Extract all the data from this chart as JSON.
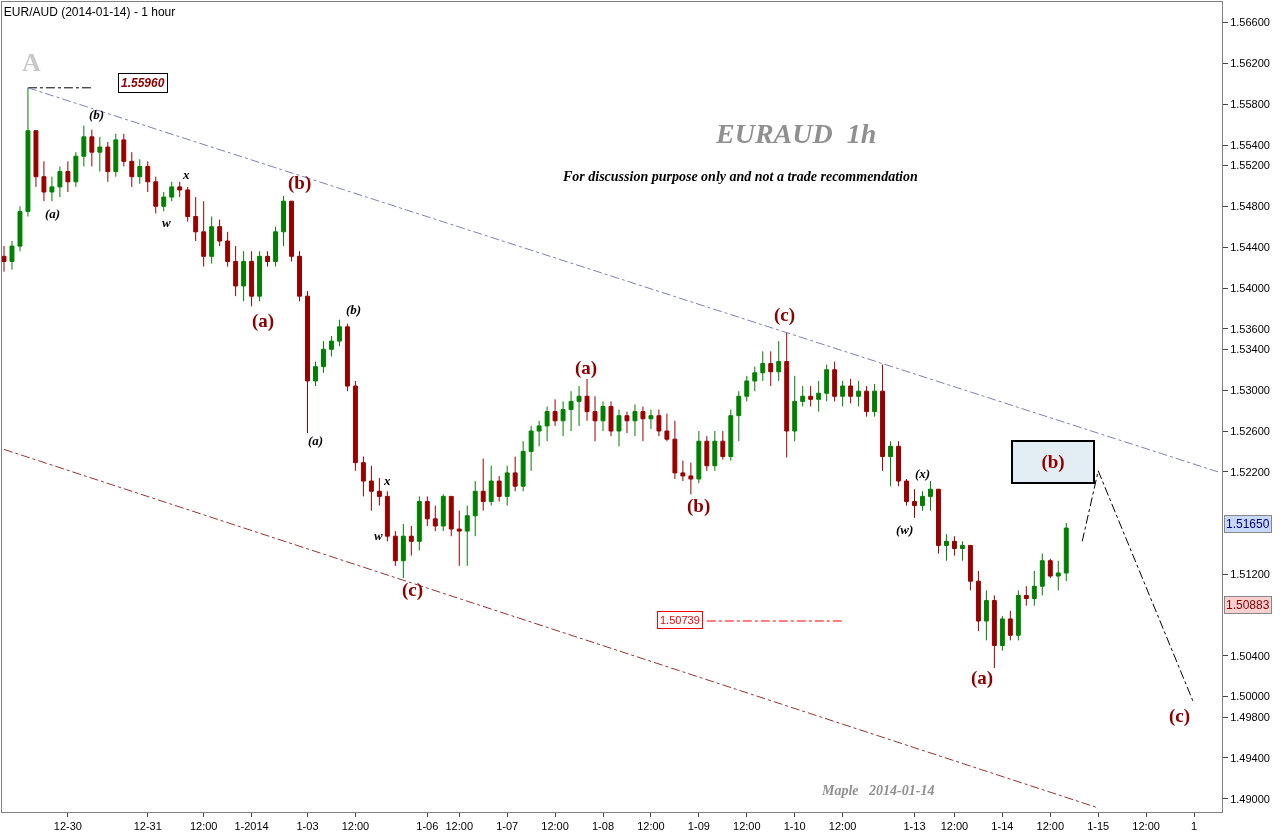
{
  "chart_data": {
    "type": "candlestick",
    "title": "EUR/AUD (2014-01-14) - 1 hour",
    "categories": [
      null,
      null,
      null,
      null,
      null,
      null,
      null,
      null,
      "12-30",
      null,
      null,
      null,
      null,
      null,
      null,
      null,
      null,
      null,
      "12-31",
      null,
      null,
      null,
      null,
      null,
      null,
      "12:00",
      null,
      null,
      null,
      null,
      null,
      "1-2014",
      null,
      null,
      null,
      null,
      null,
      null,
      "1-03",
      null,
      null,
      null,
      null,
      null,
      "12:00",
      null,
      null,
      null,
      null,
      null,
      null,
      null,
      null,
      "1-06",
      null,
      null,
      null,
      "12:00",
      null,
      null,
      null,
      null,
      null,
      "1-07",
      null,
      null,
      null,
      null,
      null,
      "12:00",
      null,
      null,
      null,
      null,
      null,
      "1-08",
      null,
      null,
      null,
      null,
      null,
      "12:00",
      null,
      null,
      null,
      null,
      null,
      "1-09",
      null,
      null,
      null,
      null,
      null,
      "12:00",
      null,
      null,
      null,
      null,
      null,
      "1-10",
      null,
      null,
      null,
      null,
      null,
      "12:00",
      null,
      null,
      null,
      null,
      null,
      null,
      null,
      null,
      "1-13",
      null,
      null,
      null,
      null,
      "12:00",
      null,
      null,
      null,
      null,
      null,
      "1-14",
      null,
      null,
      null,
      null,
      null,
      "12:00",
      null,
      null,
      null,
      null,
      null,
      "1-15",
      null,
      null,
      null,
      null,
      null,
      "12:00",
      null,
      null,
      null,
      null,
      null,
      "1",
      null,
      null,
      null
    ],
    "ohlc": [
      [
        1.5431,
        1.5441,
        1.5416,
        1.5426
      ],
      [
        1.5426,
        1.5446,
        1.5418,
        1.5441
      ],
      [
        1.5441,
        1.548,
        1.5436,
        1.5475
      ],
      [
        1.5475,
        1.5596,
        1.547,
        1.5554
      ],
      [
        1.5554,
        1.5554,
        1.5499,
        1.5509
      ],
      [
        1.5509,
        1.5524,
        1.5485,
        1.5494
      ],
      [
        1.5494,
        1.5509,
        1.5485,
        1.5499
      ],
      [
        1.5499,
        1.5519,
        1.5489,
        1.5514
      ],
      [
        1.5514,
        1.5524,
        1.5494,
        1.5504
      ],
      [
        1.5504,
        1.5533,
        1.5499,
        1.5529
      ],
      [
        1.5529,
        1.5559,
        1.5519,
        1.5548
      ],
      [
        1.5548,
        1.5555,
        1.5519,
        1.5533
      ],
      [
        1.5533,
        1.5548,
        1.5514,
        1.5538
      ],
      [
        1.5538,
        1.5543,
        1.5504,
        1.5514
      ],
      [
        1.5514,
        1.5551,
        1.5509,
        1.5545
      ],
      [
        1.5545,
        1.5551,
        1.5519,
        1.5524
      ],
      [
        1.5524,
        1.5533,
        1.5499,
        1.5509
      ],
      [
        1.5509,
        1.5526,
        1.5502,
        1.5519
      ],
      [
        1.5519,
        1.5524,
        1.5494,
        1.5504
      ],
      [
        1.5504,
        1.5509,
        1.5473,
        1.548
      ],
      [
        1.548,
        1.5494,
        1.5475,
        1.5489
      ],
      [
        1.5489,
        1.5504,
        1.5485,
        1.5499
      ],
      [
        1.5499,
        1.5504,
        1.5489,
        1.5496
      ],
      [
        1.5496,
        1.5499,
        1.5465,
        1.547
      ],
      [
        1.547,
        1.5489,
        1.5446,
        1.5455
      ],
      [
        1.5455,
        1.5485,
        1.5421,
        1.5431
      ],
      [
        1.5431,
        1.547,
        1.5424,
        1.546
      ],
      [
        1.546,
        1.5467,
        1.5441,
        1.5446
      ],
      [
        1.5446,
        1.5455,
        1.5421,
        1.5426
      ],
      [
        1.5426,
        1.5441,
        1.5392,
        1.5402
      ],
      [
        1.5402,
        1.5436,
        1.5387,
        1.5426
      ],
      [
        1.5426,
        1.5436,
        1.5382,
        1.5392
      ],
      [
        1.5392,
        1.5436,
        1.5387,
        1.5431
      ],
      [
        1.5431,
        1.5436,
        1.5421,
        1.5426
      ],
      [
        1.5426,
        1.546,
        1.5421,
        1.5455
      ],
      [
        1.5455,
        1.549,
        1.5441,
        1.5485
      ],
      [
        1.5485,
        1.5485,
        1.5426,
        1.5431
      ],
      [
        1.5431,
        1.5436,
        1.5387,
        1.5392
      ],
      [
        1.5392,
        1.5397,
        1.5258,
        1.5309
      ],
      [
        1.5309,
        1.5328,
        1.5304,
        1.5323
      ],
      [
        1.5323,
        1.5348,
        1.5317,
        1.534
      ],
      [
        1.534,
        1.5353,
        1.5333,
        1.5348
      ],
      [
        1.5348,
        1.5369,
        1.5343,
        1.5362
      ],
      [
        1.5362,
        1.5365,
        1.5299,
        1.5304
      ],
      [
        1.5304,
        1.5309,
        1.5221,
        1.5229
      ],
      [
        1.5229,
        1.5235,
        1.5196,
        1.5211
      ],
      [
        1.5211,
        1.5226,
        1.5182,
        1.5201
      ],
      [
        1.5201,
        1.5214,
        1.5187,
        1.5196
      ],
      [
        1.5196,
        1.5201,
        1.5152,
        1.5157
      ],
      [
        1.5157,
        1.5162,
        1.5128,
        1.5133
      ],
      [
        1.5133,
        1.5169,
        1.5116,
        1.5157
      ],
      [
        1.5157,
        1.5167,
        1.5138,
        1.5152
      ],
      [
        1.5152,
        1.5196,
        1.5143,
        1.5191
      ],
      [
        1.5191,
        1.5196,
        1.5167,
        1.5174
      ],
      [
        1.5174,
        1.5187,
        1.5162,
        1.5167
      ],
      [
        1.5167,
        1.5198,
        1.5162,
        1.5196
      ],
      [
        1.5196,
        1.5196,
        1.5157,
        1.5164
      ],
      [
        1.5164,
        1.5182,
        1.5128,
        1.5162
      ],
      [
        1.5162,
        1.5187,
        1.5128,
        1.5177
      ],
      [
        1.5177,
        1.5211,
        1.5157,
        1.5201
      ],
      [
        1.5201,
        1.5233,
        1.5182,
        1.5191
      ],
      [
        1.5191,
        1.5226,
        1.5187,
        1.5211
      ],
      [
        1.5211,
        1.5216,
        1.5191,
        1.5196
      ],
      [
        1.5196,
        1.5226,
        1.5187,
        1.5219
      ],
      [
        1.5219,
        1.5235,
        1.5201,
        1.5206
      ],
      [
        1.5206,
        1.525,
        1.5201,
        1.524
      ],
      [
        1.524,
        1.5265,
        1.5221,
        1.526
      ],
      [
        1.526,
        1.527,
        1.5245,
        1.5265
      ],
      [
        1.5265,
        1.5284,
        1.525,
        1.5279
      ],
      [
        1.5279,
        1.5291,
        1.5265,
        1.527
      ],
      [
        1.527,
        1.5289,
        1.5255,
        1.5281
      ],
      [
        1.5281,
        1.5299,
        1.526,
        1.5289
      ],
      [
        1.5289,
        1.5304,
        1.5265,
        1.5294
      ],
      [
        1.5294,
        1.5311,
        1.527,
        1.5279
      ],
      [
        1.5279,
        1.5294,
        1.525,
        1.527
      ],
      [
        1.527,
        1.5289,
        1.526,
        1.5284
      ],
      [
        1.5284,
        1.5289,
        1.5255,
        1.526
      ],
      [
        1.526,
        1.5281,
        1.5245,
        1.5275
      ],
      [
        1.5275,
        1.5279,
        1.5258,
        1.527
      ],
      [
        1.527,
        1.5286,
        1.5255,
        1.5279
      ],
      [
        1.5279,
        1.5284,
        1.525,
        1.5272
      ],
      [
        1.5272,
        1.5281,
        1.5262,
        1.5275
      ],
      [
        1.5275,
        1.5281,
        1.5255,
        1.526
      ],
      [
        1.526,
        1.5277,
        1.525,
        1.5252
      ],
      [
        1.5252,
        1.527,
        1.5213,
        1.5219
      ],
      [
        1.5219,
        1.5231,
        1.5211,
        1.5216
      ],
      [
        1.5216,
        1.5229,
        1.5198,
        1.5213
      ],
      [
        1.5213,
        1.526,
        1.5209,
        1.525
      ],
      [
        1.525,
        1.5255,
        1.5221,
        1.5226
      ],
      [
        1.5226,
        1.526,
        1.5221,
        1.525
      ],
      [
        1.525,
        1.526,
        1.5232,
        1.5235
      ],
      [
        1.5235,
        1.5281,
        1.5231,
        1.5275
      ],
      [
        1.5275,
        1.5299,
        1.525,
        1.5294
      ],
      [
        1.5294,
        1.5314,
        1.5289,
        1.5309
      ],
      [
        1.5309,
        1.5323,
        1.5299,
        1.5317
      ],
      [
        1.5317,
        1.5338,
        1.5309,
        1.5326
      ],
      [
        1.5326,
        1.5338,
        1.5304,
        1.5318
      ],
      [
        1.5318,
        1.5348,
        1.5309,
        1.5328
      ],
      [
        1.5328,
        1.5356,
        1.5234,
        1.526
      ],
      [
        1.526,
        1.5314,
        1.525,
        1.5289
      ],
      [
        1.5289,
        1.5304,
        1.5284,
        1.5294
      ],
      [
        1.5294,
        1.5304,
        1.5284,
        1.5291
      ],
      [
        1.5291,
        1.5309,
        1.5279,
        1.5297
      ],
      [
        1.5297,
        1.5325,
        1.5289,
        1.532
      ],
      [
        1.532,
        1.5328,
        1.5289,
        1.5294
      ],
      [
        1.5294,
        1.5309,
        1.5284,
        1.5304
      ],
      [
        1.5304,
        1.5311,
        1.5287,
        1.5294
      ],
      [
        1.5294,
        1.5309,
        1.5284,
        1.5299
      ],
      [
        1.5299,
        1.5304,
        1.5274,
        1.5279
      ],
      [
        1.5279,
        1.5306,
        1.5274,
        1.5299
      ],
      [
        1.5299,
        1.5325,
        1.5221,
        1.5235
      ],
      [
        1.5235,
        1.525,
        1.5206,
        1.5245
      ],
      [
        1.5245,
        1.525,
        1.5206,
        1.5211
      ],
      [
        1.5211,
        1.5213,
        1.5187,
        1.5191
      ],
      [
        1.5191,
        1.5203,
        1.5175,
        1.5187
      ],
      [
        1.5187,
        1.5201,
        1.5182,
        1.5196
      ],
      [
        1.5196,
        1.5211,
        1.5182,
        1.5203
      ],
      [
        1.5203,
        1.5203,
        1.514,
        1.5148
      ],
      [
        1.5148,
        1.5159,
        1.5133,
        1.5152
      ],
      [
        1.5152,
        1.5157,
        1.5138,
        1.5145
      ],
      [
        1.5145,
        1.5152,
        1.5133,
        1.5148
      ],
      [
        1.5148,
        1.5148,
        1.5104,
        1.5113
      ],
      [
        1.5113,
        1.5123,
        1.5064,
        1.5074
      ],
      [
        1.5074,
        1.5104,
        1.5055,
        1.5094
      ],
      [
        1.5094,
        1.5099,
        1.5028,
        1.505
      ],
      [
        1.505,
        1.5079,
        1.5045,
        1.5076
      ],
      [
        1.5076,
        1.5084,
        1.5055,
        1.506
      ],
      [
        1.506,
        1.5104,
        1.5055,
        1.5099
      ],
      [
        1.5099,
        1.5108,
        1.5089,
        1.5096
      ],
      [
        1.5096,
        1.5123,
        1.5089,
        1.5108
      ],
      [
        1.5108,
        1.514,
        1.5099,
        1.5133
      ],
      [
        1.5133,
        1.5135,
        1.5116,
        1.5118
      ],
      [
        1.5118,
        1.5133,
        1.5104,
        1.5121
      ],
      [
        1.5121,
        1.517,
        1.5113,
        1.5165
      ],
      null,
      null,
      null,
      null,
      null,
      null,
      null,
      null,
      null,
      null,
      null,
      null,
      null,
      null,
      null,
      null,
      null,
      null,
      null
    ],
    "colors": [
      "#990000",
      "#008000",
      "#008000",
      "#008000",
      "#990000",
      "#990000",
      "#008000",
      "#008000",
      "#990000",
      "#008000",
      "#008000",
      "#990000",
      "#008000",
      "#990000",
      "#008000",
      "#990000",
      "#990000",
      "#008000",
      "#990000",
      "#990000",
      "#008000",
      "#008000",
      "#990000",
      "#990000",
      "#990000",
      "#990000",
      "#008000",
      "#990000",
      "#990000",
      "#990000",
      "#008000",
      "#990000",
      "#008000",
      "#990000",
      "#008000",
      "#008000",
      "#990000",
      "#990000",
      "#990000",
      "#008000",
      "#008000",
      "#008000",
      "#008000",
      "#990000",
      "#990000",
      "#990000",
      "#990000",
      "#990000",
      "#990000",
      "#990000",
      "#008000",
      "#990000",
      "#008000",
      "#990000",
      "#990000",
      "#008000",
      "#990000",
      "#990000",
      "#008000",
      "#008000",
      "#990000",
      "#008000",
      "#990000",
      "#008000",
      "#990000",
      "#008000",
      "#008000",
      "#008000",
      "#008000",
      "#990000",
      "#008000",
      "#008000",
      "#008000",
      "#990000",
      "#990000",
      "#008000",
      "#990000",
      "#008000",
      "#990000",
      "#008000",
      "#990000",
      "#008000",
      "#990000",
      "#990000",
      "#990000",
      "#990000",
      "#990000",
      "#008000",
      "#990000",
      "#008000",
      "#990000",
      "#008000",
      "#008000",
      "#008000",
      "#008000",
      "#008000",
      "#990000",
      "#008000",
      "#990000",
      "#008000",
      "#008000",
      "#990000",
      "#008000",
      "#008000",
      "#990000",
      "#008000",
      "#990000",
      "#008000",
      "#990000",
      "#008000",
      "#990000",
      "#008000",
      "#990000",
      "#990000",
      "#990000",
      "#008000",
      "#008000",
      "#990000",
      "#008000",
      "#990000",
      "#008000",
      "#990000",
      "#990000",
      "#008000",
      "#990000",
      "#008000",
      "#990000",
      "#008000",
      "#990000",
      "#008000",
      "#008000",
      "#990000",
      "#008000",
      "#008000",
      null,
      null,
      null,
      null,
      null,
      null,
      null,
      null,
      null,
      null,
      null,
      null,
      null,
      null,
      null,
      null,
      null,
      null,
      null
    ],
    "series": [
      {
        "type": "line",
        "values": [
          null,
          null,
          null,
          1.5596,
          null,
          null,
          null,
          null,
          null,
          null,
          null,
          null,
          null,
          null,
          null,
          null,
          null,
          null,
          null,
          null,
          null,
          null,
          null,
          null,
          null,
          null,
          null,
          null,
          null,
          null,
          null,
          null,
          null,
          null,
          null,
          null,
          null,
          null,
          null,
          null,
          null,
          null,
          null,
          null,
          null,
          null,
          null,
          null,
          null,
          null,
          null,
          null,
          null,
          null,
          null,
          null,
          null,
          null,
          null,
          null,
          null,
          null,
          null,
          null,
          null,
          null,
          null,
          null,
          null,
          null,
          null,
          null,
          null,
          null,
          null,
          null,
          null,
          null,
          null,
          null,
          null,
          null,
          null,
          null,
          null,
          null,
          null,
          null,
          null,
          null,
          null,
          null,
          null,
          null,
          null,
          null,
          null,
          null,
          null,
          null,
          null,
          null,
          null,
          null,
          null,
          null,
          null,
          null,
          null,
          null,
          null,
          null,
          null,
          null,
          null,
          null,
          null,
          null,
          null,
          null,
          null,
          null,
          null,
          null,
          null,
          null,
          null,
          null,
          null,
          null,
          null,
          null,
          null,
          null,
          null,
          null,
          null,
          null,
          null,
          null,
          null,
          null,
          null,
          null,
          null,
          null,
          null,
          null,
          null,
          null,
          null,
          null,
          1.522
        ],
        "color": "#8080b8",
        "line_style": "dashed"
      },
      {
        "type": "line",
        "values": [
          1.5242,
          null,
          null,
          null,
          null,
          null,
          null,
          null,
          null,
          null,
          null,
          null,
          null,
          null,
          null,
          null,
          null,
          null,
          null,
          null,
          null,
          null,
          null,
          null,
          null,
          null,
          null,
          null,
          null,
          null,
          null,
          null,
          null,
          null,
          null,
          null,
          null,
          null,
          null,
          null,
          null,
          null,
          null,
          null,
          null,
          null,
          null,
          null,
          null,
          null,
          null,
          null,
          null,
          null,
          null,
          null,
          null,
          null,
          null,
          null,
          null,
          null,
          null,
          null,
          null,
          null,
          null,
          null,
          null,
          null,
          null,
          null,
          null,
          null,
          null,
          null,
          null,
          null,
          null,
          null,
          null,
          null,
          null,
          null,
          null,
          null,
          null,
          null,
          null,
          null,
          null,
          null,
          null,
          null,
          null,
          null,
          null,
          null,
          null,
          null,
          null,
          null,
          null,
          null,
          null,
          null,
          null,
          null,
          null,
          null,
          null,
          null,
          null,
          null,
          null,
          null,
          null,
          null,
          null,
          null,
          null,
          null,
          null,
          null,
          null,
          null,
          null,
          null,
          null,
          null,
          null,
          null,
          null,
          null,
          null,
          null,
          null,
          1.4891,
          null,
          null,
          null,
          null,
          null,
          null,
          null,
          null,
          null,
          null,
          null,
          null,
          null,
          null,
          null
        ],
        "color": "#993333",
        "line_style": "dashed"
      },
      {
        "type": "line",
        "values": [
          null,
          null,
          null,
          null,
          null,
          null,
          null,
          null,
          null,
          null,
          null,
          null,
          null,
          null,
          null,
          null,
          null,
          null,
          null,
          null,
          null,
          null,
          null,
          null,
          null,
          null,
          null,
          null,
          null,
          null,
          null,
          null,
          null,
          null,
          null,
          null,
          null,
          null,
          null,
          null,
          null,
          null,
          null,
          null,
          null,
          null,
          null,
          null,
          null,
          null,
          null,
          null,
          null,
          null,
          null,
          null,
          null,
          null,
          null,
          null,
          null,
          null,
          null,
          null,
          null,
          null,
          null,
          null,
          null,
          null,
          null,
          null,
          null,
          null,
          null,
          null,
          null,
          null,
          null,
          null,
          null,
          null,
          null,
          null,
          null,
          null,
          null,
          null,
          null,
          null,
          null,
          null,
          null,
          null,
          null,
          null,
          null,
          null,
          null,
          null,
          null,
          null,
          null,
          null,
          null,
          null,
          null,
          null,
          null,
          null,
          null,
          null,
          null,
          null,
          null,
          null,
          null,
          null,
          null,
          null,
          null,
          null,
          null,
          null,
          null,
          null,
          null,
          null,
          null,
          null,
          null,
          null,
          null,
          null,
          null,
          1.5152,
          null,
          1.5221,
          null,
          null,
          null,
          null,
          null,
          null,
          null,
          null,
          null,
          null,
          null,
          1.4993,
          null,
          null,
          null
        ],
        "color": "#000000",
        "line_style": "dashed"
      },
      {
        "type": "line",
        "values": [
          null,
          null,
          null,
          1.5596,
          null,
          null,
          null,
          null,
          null,
          null,
          null,
          1.5596,
          null,
          null,
          null,
          null,
          null,
          null,
          null,
          null,
          null,
          null,
          null,
          null,
          null,
          null,
          null,
          null,
          null,
          null,
          null,
          null,
          null,
          null,
          null,
          null,
          null,
          null,
          null,
          null,
          null,
          null,
          null,
          null,
          null,
          null,
          null,
          null,
          null,
          null,
          null,
          null,
          null,
          null,
          null,
          null,
          null,
          null,
          null,
          null,
          null,
          null,
          null,
          null,
          null,
          null,
          null,
          null,
          null,
          null,
          null,
          null,
          null,
          null,
          null,
          null,
          null,
          null,
          null,
          null,
          null,
          null,
          null,
          null,
          null,
          null,
          null,
          null,
          null,
          null,
          null,
          null,
          null,
          null,
          null,
          null,
          null,
          null,
          null,
          null,
          null,
          null,
          null,
          null,
          null,
          null,
          null,
          null,
          null,
          null,
          null,
          null,
          null,
          null,
          null,
          null,
          null,
          null,
          null,
          null,
          null,
          null,
          null,
          null,
          null,
          null,
          null,
          null,
          null,
          null,
          null,
          null,
          null,
          null,
          null,
          null,
          null,
          null,
          null,
          null,
          null,
          null,
          null,
          null,
          null,
          null,
          null,
          null,
          null,
          null,
          null,
          null,
          null
        ],
        "color": "#000000",
        "line_style": "dashed"
      },
      {
        "type": "line",
        "values": [
          null,
          null,
          null,
          null,
          null,
          null,
          null,
          null,
          null,
          null,
          null,
          null,
          null,
          null,
          null,
          null,
          null,
          null,
          null,
          null,
          null,
          null,
          null,
          null,
          null,
          null,
          null,
          null,
          null,
          null,
          null,
          null,
          null,
          null,
          null,
          null,
          null,
          null,
          null,
          null,
          null,
          null,
          null,
          null,
          null,
          null,
          null,
          null,
          null,
          null,
          null,
          null,
          null,
          null,
          null,
          null,
          null,
          null,
          null,
          null,
          null,
          null,
          null,
          null,
          null,
          null,
          null,
          null,
          null,
          null,
          null,
          null,
          null,
          null,
          null,
          null,
          null,
          null,
          null,
          null,
          null,
          null,
          null,
          null,
          null,
          null,
          null,
          null,
          1.5074,
          null,
          null,
          null,
          null,
          null,
          null,
          null,
          null,
          null,
          null,
          null,
          null,
          null,
          null,
          null,
          null,
          1.5074,
          null,
          null,
          null,
          null,
          null,
          null,
          null,
          null,
          null,
          null,
          null,
          null,
          null,
          null,
          null,
          null,
          null,
          null,
          null,
          null,
          null,
          null,
          null,
          null,
          null,
          null,
          null,
          null,
          null,
          null,
          null,
          null,
          null,
          null,
          null,
          null,
          null,
          null,
          null,
          null,
          null,
          null,
          null,
          null,
          null,
          null,
          null
        ],
        "color": "#ff0000",
        "line_style": "dashed"
      }
    ],
    "ylim": [
      1.4887,
      1.568
    ],
    "yticks": [
      {
        "value": 1.566,
        "label": "1.56600"
      },
      {
        "value": 1.562,
        "label": "1.56200"
      },
      {
        "value": 1.558,
        "label": "1.55800"
      },
      {
        "value": 1.554,
        "label": "1.55400"
      },
      {
        "value": 1.552,
        "label": "1.55200"
      },
      {
        "value": 1.548,
        "label": "1.54800"
      },
      {
        "value": 1.544,
        "label": "1.54400"
      },
      {
        "value": 1.54,
        "label": "1.54000"
      },
      {
        "value": 1.536,
        "label": "1.53600"
      },
      {
        "value": 1.534,
        "label": "1.53400"
      },
      {
        "value": 1.53,
        "label": "1.53000"
      },
      {
        "value": 1.526,
        "label": "1.52600"
      },
      {
        "value": 1.522,
        "label": "1.52200"
      },
      {
        "value": 1.512,
        "label": "1.51200"
      },
      {
        "value": 1.504,
        "label": "1.50400"
      },
      {
        "value": 1.5,
        "label": "1.50000"
      },
      {
        "value": 1.498,
        "label": "1.49800"
      },
      {
        "value": 1.494,
        "label": "1.49400"
      },
      {
        "value": 1.49,
        "label": "1.49000"
      }
    ],
    "grid": false,
    "annotations": [
      "A",
      "(b)",
      "(a)",
      "x",
      "w",
      "(b)",
      "(a)",
      "(b)",
      "(a)",
      "x",
      "w",
      "(c)",
      "(a)",
      "(b)",
      "(c)",
      "(x)",
      "(w)",
      "(a)",
      "(b)",
      "(c)",
      "1.55960",
      "1.50739",
      "1.51650",
      "1.50883",
      "EURAUD  1h",
      "For discussion purpose only and not a trade recommendation",
      "Maple   2014-01-14"
    ]
  }
}
